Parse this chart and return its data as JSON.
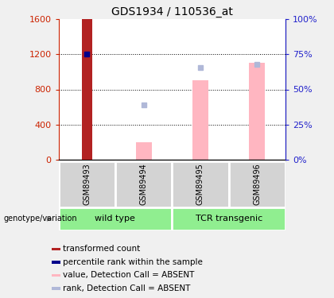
{
  "title": "GDS1934 / 110536_at",
  "samples": [
    "GSM89493",
    "GSM89494",
    "GSM89495",
    "GSM89496"
  ],
  "bar_values": [
    1600,
    null,
    null,
    null
  ],
  "bar_colors": [
    "#b22222",
    null,
    null,
    null
  ],
  "rank_value": 1200,
  "rank_color": "#00008b",
  "absent_value_bars": [
    null,
    200,
    900,
    1100
  ],
  "absent_rank_dots": [
    null,
    620,
    1050,
    1090
  ],
  "ylim_left": [
    0,
    1600
  ],
  "ylim_right": [
    0,
    100
  ],
  "yticks_left": [
    0,
    400,
    800,
    1200,
    1600
  ],
  "yticks_right": [
    0,
    25,
    50,
    75,
    100
  ],
  "ytick_labels_left": [
    "0",
    "400",
    "800",
    "1200",
    "1600"
  ],
  "ytick_labels_right": [
    "0%",
    "25%",
    "50%",
    "75%",
    "100%"
  ],
  "absent_bar_color": "#ffb6c1",
  "absent_dot_color": "#b0b8d8",
  "left_tick_color": "#cc2200",
  "right_tick_color": "#2222cc",
  "group_label": "genotype/variation",
  "legend_items": [
    {
      "label": "transformed count",
      "color": "#b22222"
    },
    {
      "label": "percentile rank within the sample",
      "color": "#00008b"
    },
    {
      "label": "value, Detection Call = ABSENT",
      "color": "#ffb6c1"
    },
    {
      "label": "rank, Detection Call = ABSENT",
      "color": "#b0b8d8"
    }
  ],
  "sample_bg_color": "#d3d3d3",
  "group_bg_color": "#90ee90",
  "fig_bg_color": "#f0f0f0",
  "plot_bg_color": "#ffffff",
  "red_bar_width": 0.18,
  "pink_bar_width": 0.28,
  "dot_size": 5,
  "grid_color": "black",
  "grid_lw": 0.7,
  "title_fontsize": 10,
  "tick_fontsize": 8,
  "sample_fontsize": 7,
  "group_fontsize": 8,
  "legend_fontsize": 7.5
}
